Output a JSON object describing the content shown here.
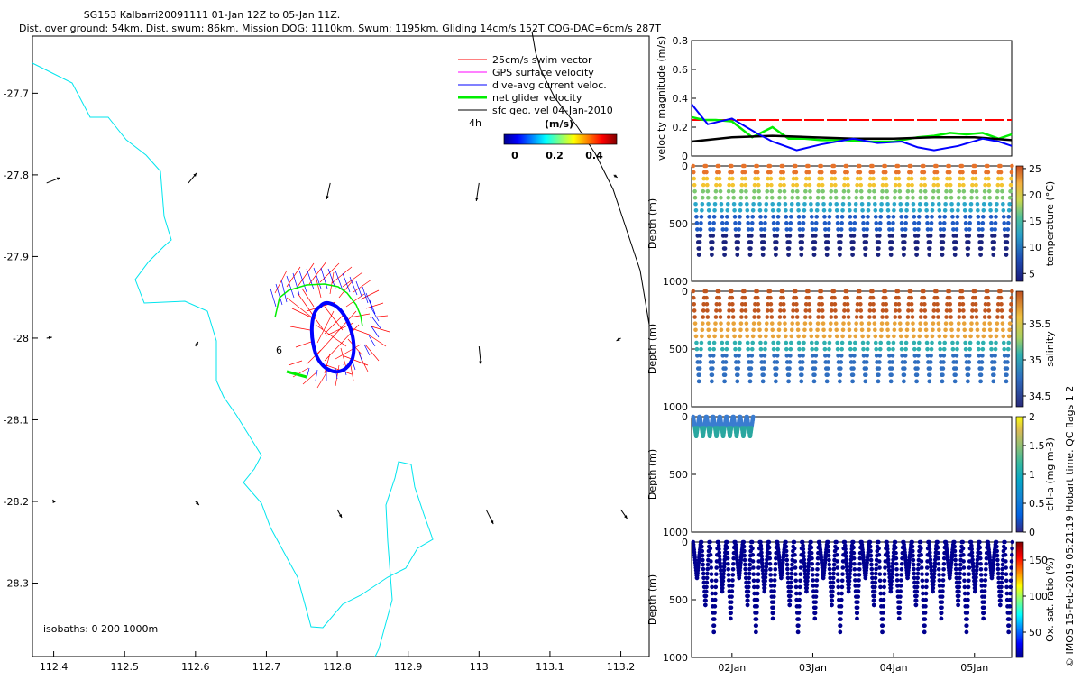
{
  "header": {
    "line1": "SG153 Kalbarri20091111 01-Jan 12Z to 05-Jan 11Z.",
    "line2": "Dist. over ground: 54km. Dist. swum: 86km. Mission DOG: 1110km. Swum: 1195km. Gliding 14cm/s 152T COG-DAC=6cm/s 287T"
  },
  "copyright": "© IMOS 15-Feb-2019 05:21:19 Hobart time. QC flags 1  2",
  "colors": {
    "coast": "#00e5ee",
    "swim": "#ff0000",
    "gps": "#ff00ff",
    "dac": "#0000ff",
    "net": "#00ee00",
    "sfc": "#000000"
  },
  "chart_data": [
    {
      "type": "scatter",
      "title": "Glider track map",
      "xlim": [
        112.37,
        113.24
      ],
      "ylim": [
        -28.39,
        -27.63
      ],
      "x_ticks": [
        "112.4",
        "112.5",
        "112.6",
        "112.7",
        "112.8",
        "112.9",
        "113",
        "113.1",
        "113.2"
      ],
      "y_ticks": [
        "-27.7",
        "-27.8",
        "-27.9",
        "-28",
        "-28.1",
        "-28.2",
        "-28.3"
      ],
      "legend": [
        "25cm/s swim vector",
        "GPS surface velocity",
        "dive-avg current veloc.",
        "net glider velocity",
        "sfc geo. vel 04-Jan-2010"
      ],
      "time_marker": "4h",
      "track_label": "6",
      "isobaths_label": "isobaths: 0   200  1000m",
      "colorbar": {
        "label": "(m/s)",
        "ticks": [
          "0",
          "0.2",
          "0.4"
        ],
        "range": [
          0,
          0.5
        ]
      },
      "sfc_geo_vectors": [
        {
          "lon": 112.39,
          "lat": -27.81,
          "u": 0.15,
          "v": 0.06
        },
        {
          "lon": 112.59,
          "lat": -27.81,
          "u": 0.09,
          "v": 0.11
        },
        {
          "lon": 112.79,
          "lat": -27.81,
          "u": -0.04,
          "v": -0.18
        },
        {
          "lon": 113.0,
          "lat": -27.81,
          "u": -0.03,
          "v": -0.2
        },
        {
          "lon": 113.19,
          "lat": -27.8,
          "u": 0.04,
          "v": -0.03
        },
        {
          "lon": 112.39,
          "lat": -28.0,
          "u": 0.06,
          "v": 0.01
        },
        {
          "lon": 112.6,
          "lat": -28.01,
          "u": 0.03,
          "v": 0.05
        },
        {
          "lon": 113.0,
          "lat": -28.01,
          "u": 0.02,
          "v": -0.2
        },
        {
          "lon": 113.2,
          "lat": -28.0,
          "u": -0.05,
          "v": -0.03
        },
        {
          "lon": 112.4,
          "lat": -28.2,
          "u": -0.01,
          "v": 0.02
        },
        {
          "lon": 112.6,
          "lat": -28.2,
          "u": 0.04,
          "v": -0.04
        },
        {
          "lon": 112.8,
          "lat": -28.21,
          "u": 0.05,
          "v": -0.09
        },
        {
          "lon": 113.01,
          "lat": -28.21,
          "u": 0.08,
          "v": -0.16
        },
        {
          "lon": 113.2,
          "lat": -28.21,
          "u": 0.07,
          "v": -0.1
        }
      ]
    },
    {
      "type": "line",
      "ylabel": "velocity magnitude (m/s)",
      "ylim": [
        0,
        0.8
      ],
      "yticks": [
        "0",
        "0.2",
        "0.4",
        "0.6",
        "0.8"
      ],
      "x_days": [
        0,
        3.96
      ],
      "series": [
        {
          "name": "swim (red dashed)",
          "x": [
            0,
            3.96
          ],
          "values": [
            0.25,
            0.25
          ]
        },
        {
          "name": "net (green)",
          "x": [
            0,
            0.15,
            0.3,
            0.5,
            0.75,
            1.0,
            1.2,
            1.4,
            1.6,
            1.9,
            2.2,
            2.5,
            2.8,
            3.0,
            3.2,
            3.4,
            3.6,
            3.8,
            3.96
          ],
          "values": [
            0.27,
            0.25,
            0.25,
            0.24,
            0.13,
            0.2,
            0.12,
            0.12,
            0.11,
            0.11,
            0.1,
            0.1,
            0.13,
            0.14,
            0.16,
            0.15,
            0.16,
            0.12,
            0.15
          ]
        },
        {
          "name": "geo (black)",
          "x": [
            0,
            0.5,
            1.0,
            1.5,
            2.0,
            2.5,
            3.0,
            3.5,
            3.96
          ],
          "values": [
            0.1,
            0.13,
            0.14,
            0.13,
            0.12,
            0.12,
            0.13,
            0.13,
            0.11
          ]
        },
        {
          "name": "DAC (blue)",
          "x": [
            0,
            0.2,
            0.5,
            0.8,
            1.0,
            1.3,
            1.6,
            2.0,
            2.3,
            2.6,
            2.8,
            3.0,
            3.3,
            3.6,
            3.8,
            3.96
          ],
          "values": [
            0.36,
            0.22,
            0.26,
            0.16,
            0.1,
            0.04,
            0.08,
            0.12,
            0.09,
            0.1,
            0.06,
            0.04,
            0.07,
            0.12,
            0.1,
            0.07
          ]
        }
      ]
    },
    {
      "type": "scatter",
      "ylabel": "Depth (m)",
      "ylim": [
        0,
        1000
      ],
      "yticks": [
        "0",
        "500",
        "1000"
      ],
      "colorbar": {
        "label": "temperature (°C)",
        "ticks": [
          "5",
          "10",
          "15",
          "20",
          "25"
        ],
        "range": [
          3.5,
          25.5
        ]
      },
      "profiles": {
        "count": 25,
        "max_depth": 770,
        "surface_value": 25,
        "deep_value": 4
      }
    },
    {
      "type": "scatter",
      "ylabel": "Depth (m)",
      "ylim": [
        0,
        1000
      ],
      "yticks": [
        "0",
        "500",
        "1000"
      ],
      "colorbar": {
        "label": "salinity",
        "ticks": [
          "34.5",
          "35",
          "35.5"
        ],
        "range": [
          34.35,
          35.95
        ]
      },
      "profiles": {
        "count": 25,
        "max_depth": 780
      }
    },
    {
      "type": "scatter",
      "ylabel": "Depth (m)",
      "ylim": [
        0,
        1000
      ],
      "yticks": [
        "0",
        "500",
        "1000"
      ],
      "colorbar": {
        "label": "chl-a (mg m-3)",
        "ticks": [
          "0",
          "0.5",
          "1",
          "1.5",
          "2"
        ],
        "range": [
          0,
          2
        ]
      },
      "profiles": {
        "count": 9,
        "max_depth": 170
      }
    },
    {
      "type": "scatter",
      "ylabel": "Depth (m)",
      "ylim": [
        0,
        1000
      ],
      "yticks": [
        "0",
        "500",
        "1000"
      ],
      "x_ticks": [
        "02Jan",
        "03Jan",
        "04Jan",
        "05Jan"
      ],
      "colorbar": {
        "label": "Ox. sat. ratio (%)",
        "ticks": [
          "50",
          "100",
          "150"
        ],
        "range": [
          15,
          175
        ]
      },
      "profiles": {
        "count": 38,
        "max_depth": 780
      }
    }
  ]
}
